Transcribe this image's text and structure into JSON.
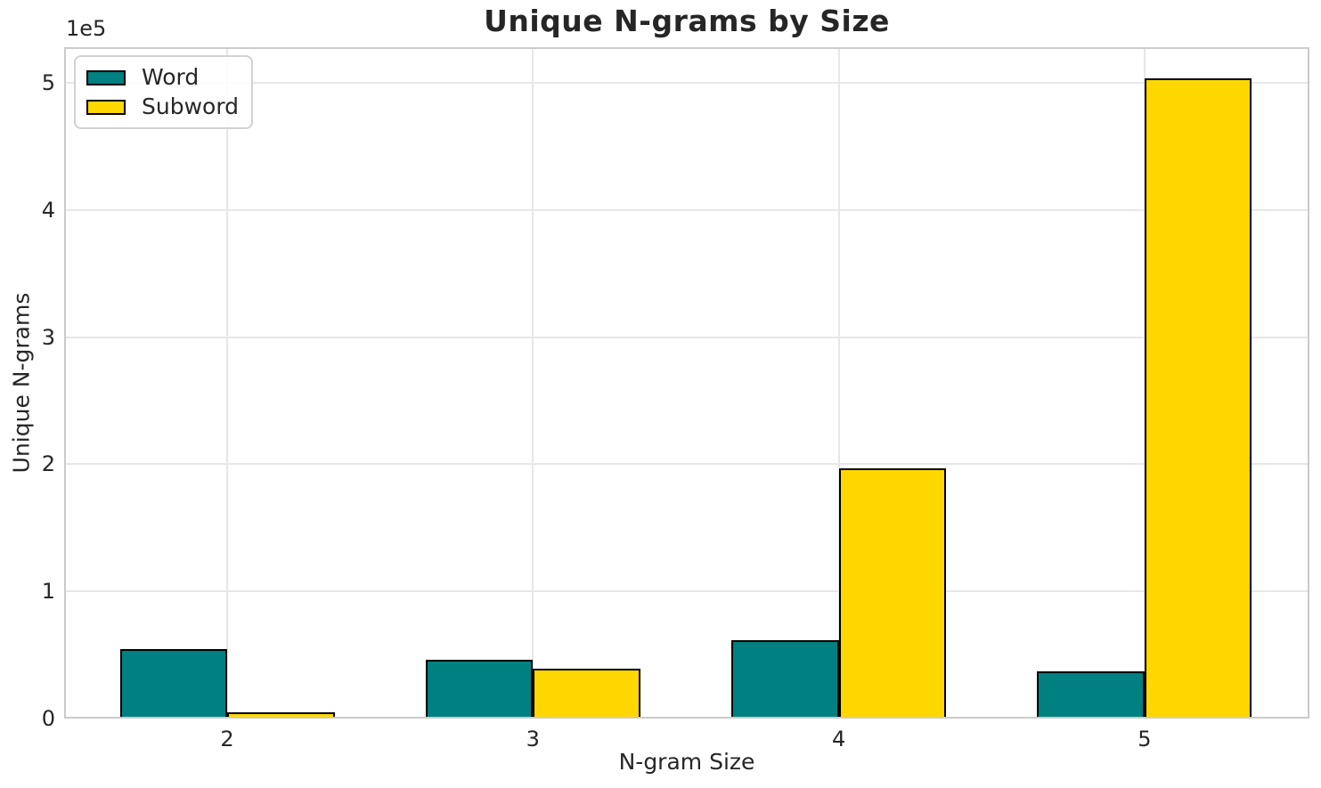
{
  "chart_data": {
    "type": "bar",
    "title": "Unique N-grams by Size",
    "xlabel": "N-gram Size",
    "ylabel": "Unique N-grams",
    "y_offset_label": "1e5",
    "categories": [
      "2",
      "3",
      "4",
      "5"
    ],
    "series": [
      {
        "name": "Word",
        "color": "#008080",
        "values": [
          54800,
          46500,
          61500,
          37300
        ]
      },
      {
        "name": "Subword",
        "color": "#FFD700",
        "values": [
          5000,
          39500,
          196700,
          503500
        ]
      }
    ],
    "ylim": [
      0,
      528000
    ],
    "yticks": [
      0,
      100000,
      200000,
      300000,
      400000,
      500000
    ],
    "ytick_labels": [
      "0",
      "1",
      "2",
      "3",
      "4",
      "5"
    ],
    "grid": true,
    "legend_position": "upper left",
    "bar_edge_color": "#000000",
    "colors": {
      "background": "#ffffff",
      "grid": "#e7e7e7",
      "spine": "#cbcbcb",
      "text": "#262626"
    }
  }
}
